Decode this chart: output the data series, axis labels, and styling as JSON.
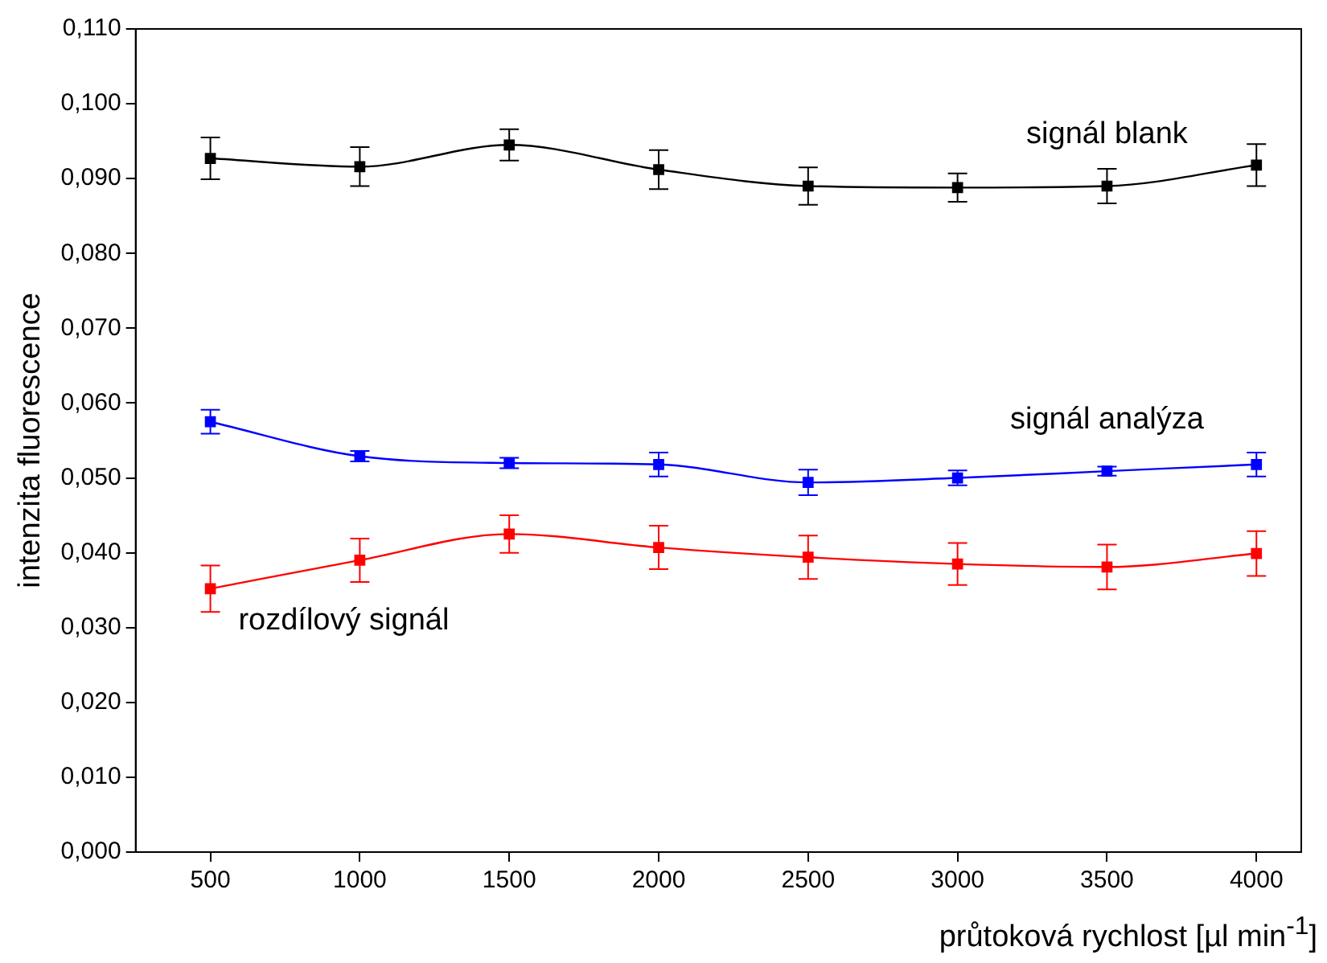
{
  "chart_data": {
    "type": "line",
    "xlabel": "průtoková rychlost [µl min$^{-1}$]",
    "ylabel": "intenzita fluorescence",
    "x": [
      500,
      1000,
      1500,
      2000,
      2500,
      3000,
      3500,
      4000
    ],
    "series": [
      {
        "name": "signál blank",
        "color": "#000000",
        "values": [
          0.0927,
          0.0916,
          0.0945,
          0.0912,
          0.089,
          0.0888,
          0.089,
          0.0918
        ],
        "errors": [
          0.0028,
          0.0026,
          0.0021,
          0.0026,
          0.0025,
          0.0019,
          0.0023,
          0.0028
        ]
      },
      {
        "name": "signál analýza",
        "color": "#0000ff",
        "values": [
          0.0575,
          0.0529,
          0.052,
          0.0518,
          0.0494,
          0.05,
          0.0509,
          0.0518
        ],
        "errors": [
          0.0016,
          0.0007,
          0.0007,
          0.0016,
          0.0017,
          0.001,
          0.0006,
          0.0016
        ]
      },
      {
        "name": "rozdílový signál",
        "color": "#ff0000",
        "values": [
          0.0352,
          0.039,
          0.0425,
          0.0407,
          0.0394,
          0.0385,
          0.0381,
          0.0399
        ],
        "errors": [
          0.0031,
          0.0029,
          0.0025,
          0.0029,
          0.0029,
          0.0028,
          0.003,
          0.003
        ]
      }
    ],
    "xlim": [
      250,
      4150
    ],
    "xticks": [
      500,
      1000,
      1500,
      2000,
      2500,
      3000,
      3500,
      4000
    ],
    "ylim": [
      0,
      0.11
    ],
    "yticks": [
      {
        "value": 0,
        "label": "0,000"
      },
      {
        "value": 0.01,
        "label": "0,010"
      },
      {
        "value": 0.02,
        "label": "0,020"
      },
      {
        "value": 0.03,
        "label": "0,030"
      },
      {
        "value": 0.04,
        "label": "0,040"
      },
      {
        "value": 0.05,
        "label": "0,050"
      },
      {
        "value": 0.06,
        "label": "0,060"
      },
      {
        "value": 0.07,
        "label": "0,070"
      },
      {
        "value": 0.08,
        "label": "0,080"
      },
      {
        "value": 0.09,
        "label": "0,090"
      },
      {
        "value": 0.1,
        "label": "0,100"
      },
      {
        "value": 0.11,
        "label": "0,110"
      }
    ],
    "grid": false,
    "legend": false,
    "marker": "square",
    "line_style": "solid"
  }
}
